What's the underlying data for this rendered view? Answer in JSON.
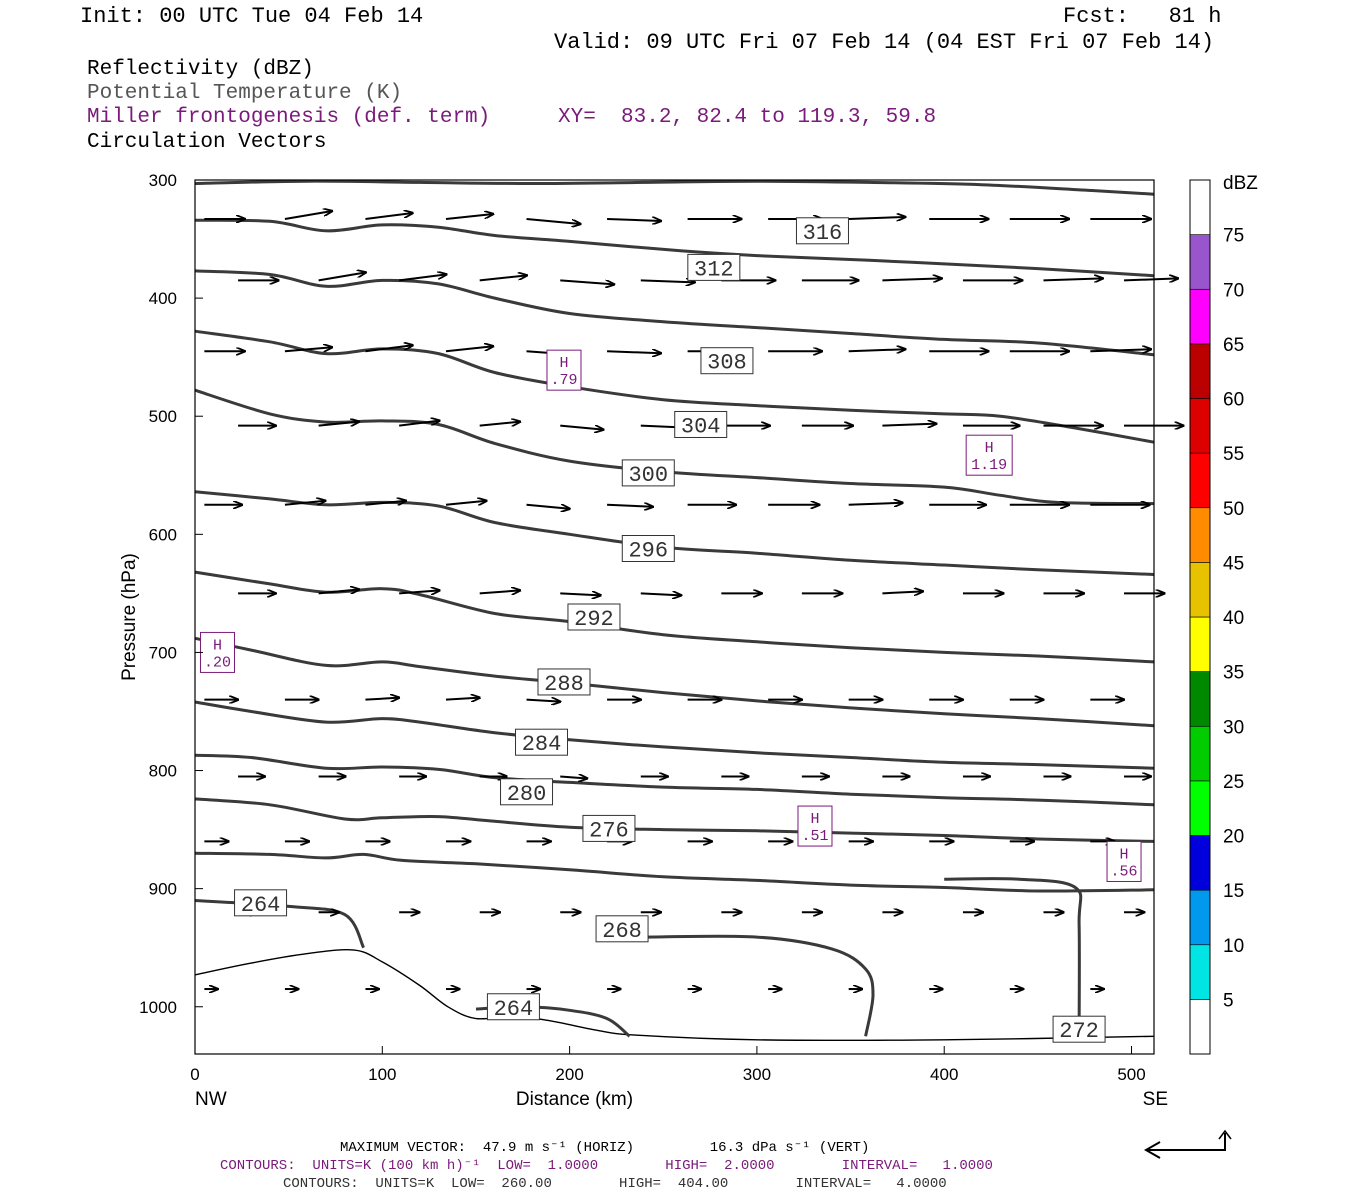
{
  "header": {
    "init": "Init: 00 UTC Tue 04 Feb 14",
    "fcst": "Fcst:   81 h",
    "valid": "Valid: 09 UTC Fri 07 Feb 14 (04 EST Fri 07 Feb 14)"
  },
  "fields": [
    {
      "label": "Reflectivity (dBZ)",
      "color": "#000000"
    },
    {
      "label": "Potential Temperature (K)",
      "color": "#555555"
    },
    {
      "label": "Miller frontogenesis (def. term)",
      "color": "#7a1a7a"
    },
    {
      "label": "Circulation Vectors",
      "color": "#000000"
    }
  ],
  "xy_text": "XY=  83.2, 82.4 to 119.3, 59.8",
  "footer": {
    "max_vector": "MAXIMUM VECTOR:  47.9 m s⁻¹ (HORIZ)         16.3 dPa s⁻¹ (VERT)",
    "contours1": "CONTOURS:  UNITS=K (100 km h)⁻¹  LOW=  1.0000        HIGH=  2.0000        INTERVAL=   1.0000",
    "contours2": "CONTOURS:  UNITS=K  LOW=  260.00        HIGH=  404.00        INTERVAL=   4.0000"
  },
  "chart_data": {
    "type": "line",
    "xlabel": "Distance (km)",
    "ylabel": "Pressure (hPa)",
    "xlim": [
      0,
      512
    ],
    "ylim": [
      1040,
      300
    ],
    "x_ticks": [
      0,
      100,
      200,
      300,
      400,
      500
    ],
    "y_ticks": [
      300,
      400,
      500,
      600,
      700,
      800,
      900,
      1000
    ],
    "x_end_labels": {
      "left": "NW",
      "right": "SE"
    },
    "colorbar": {
      "unit": "dBZ",
      "labels": [
        "5",
        "10",
        "15",
        "20",
        "25",
        "30",
        "35",
        "40",
        "45",
        "50",
        "55",
        "60",
        "65",
        "70",
        "75"
      ],
      "colors": [
        "#00e4e4",
        "#0099ee",
        "#0000dd",
        "#00ff00",
        "#00cc00",
        "#008800",
        "#ffff00",
        "#e6c200",
        "#ff8c00",
        "#ff0000",
        "#dd0000",
        "#bb0000",
        "#ff00ff",
        "#9955cc"
      ]
    },
    "theta_contours": [
      {
        "label": "316",
        "label_pos": [
          335,
          343
        ],
        "points": [
          [
            0,
            303
          ],
          [
            60,
            301
          ],
          [
            120,
            302
          ],
          [
            180,
            303
          ],
          [
            240,
            302
          ],
          [
            300,
            301
          ],
          [
            360,
            302
          ],
          [
            420,
            304
          ],
          [
            480,
            309
          ],
          [
            512,
            312
          ]
        ]
      },
      {
        "label": "312",
        "label_pos": [
          277,
          374
        ],
        "points": [
          [
            0,
            334
          ],
          [
            40,
            335
          ],
          [
            70,
            343
          ],
          [
            100,
            338
          ],
          [
            130,
            340
          ],
          [
            160,
            347
          ],
          [
            200,
            352
          ],
          [
            260,
            360
          ],
          [
            300,
            364
          ],
          [
            360,
            368
          ],
          [
            400,
            371
          ],
          [
            450,
            375
          ],
          [
            512,
            381
          ]
        ]
      },
      {
        "label": "308",
        "label_pos": [
          284,
          453
        ],
        "points": [
          [
            0,
            377
          ],
          [
            40,
            380
          ],
          [
            70,
            390
          ],
          [
            100,
            385
          ],
          [
            130,
            388
          ],
          [
            160,
            400
          ],
          [
            200,
            413
          ],
          [
            250,
            420
          ],
          [
            300,
            425
          ],
          [
            350,
            430
          ],
          [
            400,
            435
          ],
          [
            450,
            438
          ],
          [
            512,
            448
          ]
        ]
      },
      {
        "label": "304",
        "label_pos": [
          270,
          507
        ],
        "points": [
          [
            0,
            428
          ],
          [
            40,
            437
          ],
          [
            70,
            447
          ],
          [
            100,
            443
          ],
          [
            130,
            447
          ],
          [
            160,
            463
          ],
          [
            200,
            475
          ],
          [
            250,
            486
          ],
          [
            300,
            491
          ],
          [
            350,
            495
          ],
          [
            400,
            498
          ],
          [
            430,
            500
          ],
          [
            470,
            510
          ],
          [
            512,
            522
          ]
        ]
      },
      {
        "label": "300",
        "label_pos": [
          242,
          548
        ],
        "points": [
          [
            0,
            478
          ],
          [
            40,
            498
          ],
          [
            70,
            505
          ],
          [
            100,
            504
          ],
          [
            130,
            507
          ],
          [
            160,
            523
          ],
          [
            200,
            538
          ],
          [
            250,
            547
          ],
          [
            300,
            552
          ],
          [
            350,
            557
          ],
          [
            400,
            560
          ],
          [
            430,
            567
          ],
          [
            460,
            573
          ],
          [
            512,
            574
          ]
        ]
      },
      {
        "label": "296",
        "label_pos": [
          242,
          612
        ],
        "points": [
          [
            0,
            564
          ],
          [
            40,
            570
          ],
          [
            70,
            575
          ],
          [
            100,
            573
          ],
          [
            130,
            576
          ],
          [
            160,
            590
          ],
          [
            200,
            600
          ],
          [
            250,
            611
          ],
          [
            300,
            616
          ],
          [
            350,
            622
          ],
          [
            400,
            626
          ],
          [
            450,
            630
          ],
          [
            512,
            634
          ]
        ]
      },
      {
        "label": "292",
        "label_pos": [
          213,
          670
        ],
        "points": [
          [
            0,
            632
          ],
          [
            40,
            642
          ],
          [
            70,
            649
          ],
          [
            100,
            646
          ],
          [
            120,
            651
          ],
          [
            160,
            667
          ],
          [
            200,
            674
          ],
          [
            250,
            685
          ],
          [
            300,
            691
          ],
          [
            350,
            696
          ],
          [
            400,
            700
          ],
          [
            450,
            703
          ],
          [
            512,
            708
          ]
        ]
      },
      {
        "label": "288",
        "label_pos": [
          197,
          725
        ],
        "points": [
          [
            0,
            688
          ],
          [
            30,
            698
          ],
          [
            70,
            711
          ],
          [
            100,
            708
          ],
          [
            120,
            712
          ],
          [
            160,
            720
          ],
          [
            200,
            726
          ],
          [
            250,
            734
          ],
          [
            300,
            741
          ],
          [
            350,
            747
          ],
          [
            400,
            752
          ],
          [
            450,
            756
          ],
          [
            512,
            762
          ]
        ]
      },
      {
        "label": "284",
        "label_pos": [
          185,
          776
        ],
        "points": [
          [
            0,
            742
          ],
          [
            30,
            750
          ],
          [
            70,
            759
          ],
          [
            100,
            756
          ],
          [
            120,
            759
          ],
          [
            160,
            768
          ],
          [
            200,
            774
          ],
          [
            250,
            780
          ],
          [
            300,
            785
          ],
          [
            350,
            789
          ],
          [
            400,
            793
          ],
          [
            450,
            795
          ],
          [
            512,
            798
          ]
        ]
      },
      {
        "label": "280",
        "label_pos": [
          177,
          818
        ],
        "points": [
          [
            0,
            787
          ],
          [
            30,
            789
          ],
          [
            70,
            798
          ],
          [
            100,
            797
          ],
          [
            130,
            799
          ],
          [
            160,
            806
          ],
          [
            200,
            810
          ],
          [
            250,
            814
          ],
          [
            300,
            816
          ],
          [
            350,
            820
          ],
          [
            400,
            823
          ],
          [
            450,
            825
          ],
          [
            512,
            829
          ]
        ]
      },
      {
        "label": "276",
        "label_pos": [
          221,
          849
        ],
        "points": [
          [
            0,
            824
          ],
          [
            40,
            829
          ],
          [
            80,
            841
          ],
          [
            100,
            840
          ],
          [
            130,
            839
          ],
          [
            160,
            843
          ],
          [
            200,
            848
          ],
          [
            250,
            850
          ],
          [
            300,
            851
          ],
          [
            350,
            853
          ],
          [
            400,
            855
          ],
          [
            450,
            858
          ],
          [
            512,
            860
          ]
        ]
      },
      {
        "label": "268",
        "label_pos": [
          228,
          934
        ],
        "points": [
          [
            0,
            870
          ],
          [
            40,
            871
          ],
          [
            70,
            874
          ],
          [
            90,
            871
          ],
          [
            110,
            876
          ],
          [
            150,
            879
          ],
          [
            200,
            884
          ],
          [
            250,
            890
          ],
          [
            300,
            893
          ],
          [
            350,
            897
          ],
          [
            400,
            899
          ],
          [
            450,
            902
          ],
          [
            512,
            901
          ]
        ]
      },
      {
        "label": "264",
        "label_pos": [
          35,
          912
        ],
        "points": [
          [
            0,
            910
          ],
          [
            50,
            915
          ],
          [
            80,
            922
          ],
          [
            90,
            950
          ]
        ]
      },
      {
        "label": "264",
        "label_pos": [
          170,
          1000
        ],
        "points": [
          [
            150,
            1002
          ],
          [
            175,
            1000
          ],
          [
            200,
            1003
          ],
          [
            220,
            1010
          ],
          [
            232,
            1025
          ]
        ]
      },
      {
        "label": "272",
        "label_pos": [
          472,
          1019
        ],
        "points": [
          [
            240,
            941
          ],
          [
            300,
            941
          ],
          [
            340,
            951
          ],
          [
            358,
            968
          ],
          [
            362,
            990
          ],
          [
            358,
            1025
          ]
        ]
      },
      {
        "label": "",
        "label_pos": null,
        "points": [
          [
            400,
            892
          ],
          [
            440,
            892
          ],
          [
            470,
            899
          ],
          [
            472,
            930
          ],
          [
            472,
            1025
          ]
        ]
      }
    ],
    "terrain": [
      [
        0,
        973
      ],
      [
        30,
        963
      ],
      [
        60,
        955
      ],
      [
        85,
        952
      ],
      [
        100,
        962
      ],
      [
        120,
        982
      ],
      [
        135,
        1000
      ],
      [
        150,
        1010
      ],
      [
        170,
        1008
      ],
      [
        190,
        1012
      ],
      [
        215,
        1020
      ],
      [
        235,
        1024
      ],
      [
        300,
        1028
      ],
      [
        400,
        1028
      ],
      [
        512,
        1025
      ]
    ],
    "frontogenesis_highs": [
      {
        "label": "H",
        "value": ".79",
        "x": 197,
        "p": 461
      },
      {
        "label": "H",
        "value": "1.19",
        "x": 424,
        "p": 533
      },
      {
        "label": "H",
        "value": ".20",
        "x": 12,
        "p": 700
      },
      {
        "label": "H",
        "value": ".51",
        "x": 331,
        "p": 847
      },
      {
        "label": "H",
        "value": ".56",
        "x": 496,
        "p": 877
      }
    ],
    "vector_rows": [
      {
        "p": 333,
        "u": [
          30,
          35,
          35,
          35,
          40,
          40,
          40,
          40,
          42,
          44,
          44,
          45
        ],
        "w": [
          0,
          -8,
          -6,
          -5,
          5,
          2,
          0,
          0,
          -2,
          0,
          0,
          0
        ]
      },
      {
        "p": 385,
        "u": [
          30,
          35,
          35,
          35,
          40,
          40,
          40,
          42,
          44,
          44,
          44,
          40
        ],
        "w": [
          0,
          -8,
          -6,
          -5,
          4,
          2,
          0,
          0,
          -2,
          0,
          -2,
          -2
        ]
      },
      {
        "p": 445,
        "u": [
          30,
          35,
          35,
          35,
          40,
          40,
          40,
          40,
          42,
          44,
          44,
          45
        ],
        "w": [
          0,
          -4,
          -6,
          -5,
          4,
          2,
          0,
          0,
          -2,
          0,
          0,
          -2
        ]
      },
      {
        "p": 508,
        "u": [
          28,
          30,
          30,
          30,
          32,
          34,
          36,
          38,
          40,
          42,
          44,
          44
        ],
        "w": [
          0,
          -4,
          -5,
          -4,
          4,
          2,
          0,
          0,
          -2,
          0,
          0,
          0
        ]
      },
      {
        "p": 575,
        "u": [
          28,
          30,
          30,
          30,
          32,
          34,
          36,
          38,
          40,
          42,
          44,
          44
        ],
        "w": [
          0,
          -4,
          -4,
          -4,
          4,
          2,
          0,
          0,
          -2,
          0,
          0,
          0
        ]
      },
      {
        "p": 650,
        "u": [
          28,
          30,
          30,
          30,
          30,
          30,
          30,
          30,
          30,
          30,
          30,
          30
        ],
        "w": [
          0,
          -4,
          -3,
          -3,
          2,
          2,
          0,
          0,
          -2,
          0,
          0,
          0
        ]
      },
      {
        "p": 740,
        "u": [
          25,
          25,
          25,
          25,
          25,
          25,
          25,
          25,
          25,
          25,
          25,
          25
        ],
        "w": [
          0,
          0,
          -2,
          -2,
          2,
          0,
          0,
          0,
          0,
          0,
          0,
          0
        ]
      },
      {
        "p": 805,
        "u": [
          20,
          20,
          20,
          20,
          20,
          20,
          20,
          20,
          20,
          20,
          20,
          20
        ],
        "w": [
          0,
          0,
          0,
          0,
          2,
          0,
          0,
          0,
          0,
          0,
          0,
          0
        ]
      },
      {
        "p": 860,
        "u": [
          18,
          18,
          18,
          18,
          18,
          18,
          18,
          18,
          18,
          18,
          18,
          18
        ],
        "w": [
          0,
          0,
          0,
          0,
          0,
          0,
          0,
          0,
          0,
          0,
          0,
          0
        ]
      },
      {
        "p": 920,
        "u": [
          15,
          15,
          15,
          15,
          15,
          15,
          15,
          15,
          15,
          15,
          15,
          15
        ],
        "w": [
          0,
          0,
          0,
          0,
          0,
          0,
          0,
          0,
          0,
          0,
          0,
          0
        ]
      },
      {
        "p": 985,
        "u": [
          10,
          10,
          10,
          10,
          10,
          10,
          10,
          10,
          10,
          10,
          10,
          10
        ],
        "w": [
          0,
          0,
          0,
          0,
          0,
          0,
          0,
          0,
          0,
          0,
          0,
          0
        ]
      }
    ]
  }
}
